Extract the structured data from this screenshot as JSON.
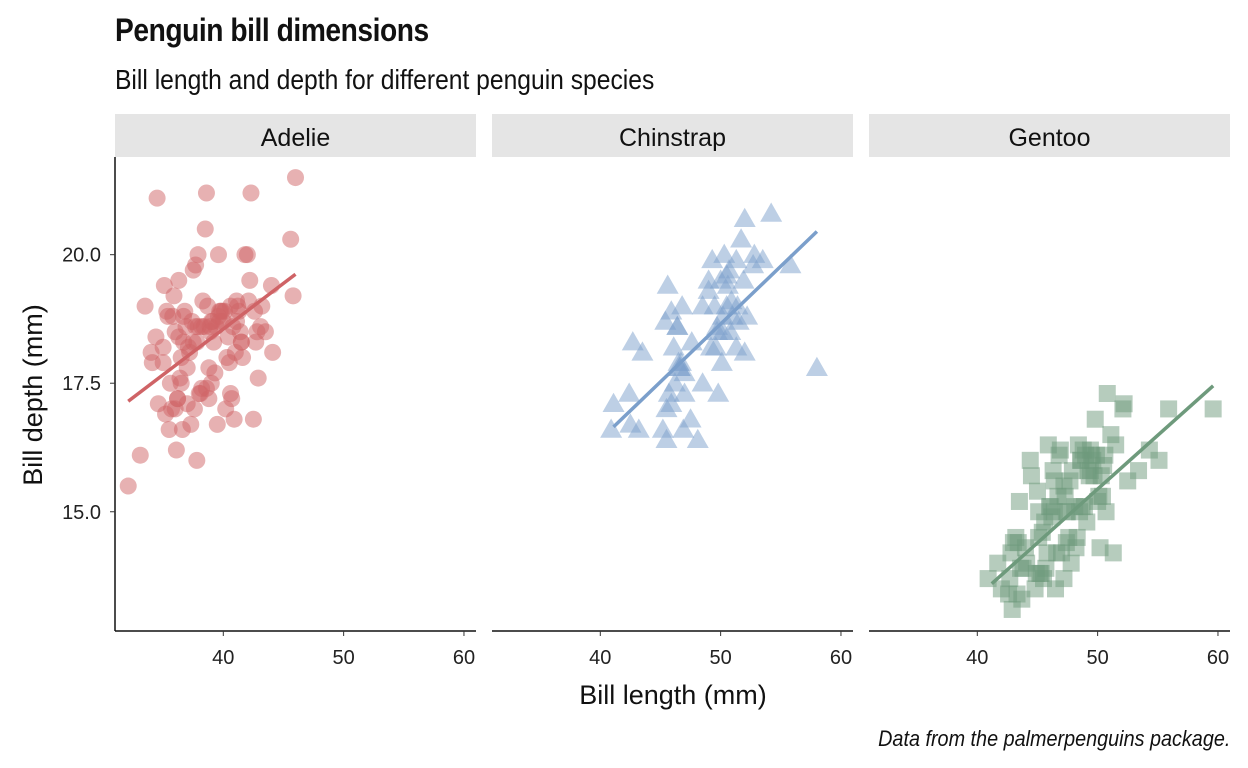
{
  "chart_data": {
    "type": "scatter",
    "title": "Penguin bill dimensions",
    "subtitle": "Bill length and depth for different penguin species",
    "caption": "Data from the palmerpenguins package.",
    "xlabel": "Bill length (mm)",
    "ylabel": "Bill depth (mm)",
    "xlim": [
      31,
      61
    ],
    "ylim": [
      12.7,
      21.9
    ],
    "xticks": [
      40,
      50,
      60
    ],
    "yticks": [
      15.0,
      17.5,
      20.0
    ],
    "ytick_labels": [
      "15.0",
      "17.5",
      "20.0"
    ],
    "xtick_labels": [
      "40",
      "50",
      "60"
    ],
    "grid": false,
    "legend": "none",
    "facets": [
      {
        "name": "Adelie",
        "color": "#cf6366",
        "shape": "circle",
        "trend": {
          "x": [
            32.1,
            46.0
          ],
          "y": [
            17.15,
            19.62
          ]
        },
        "x": [
          32.1,
          33.1,
          33.5,
          34.0,
          34.4,
          34.5,
          34.6,
          35.0,
          35.1,
          35.2,
          35.3,
          35.5,
          35.7,
          35.9,
          36.0,
          36.2,
          36.3,
          36.4,
          36.5,
          36.6,
          36.7,
          36.8,
          37.0,
          37.2,
          37.3,
          37.5,
          37.6,
          37.7,
          37.8,
          37.9,
          38.1,
          38.2,
          38.5,
          38.6,
          38.8,
          38.9,
          39.0,
          39.2,
          39.5,
          39.6,
          39.7,
          40.2,
          40.3,
          40.6,
          40.8,
          40.9,
          41.1,
          41.4,
          41.5,
          41.6,
          42.0,
          42.2,
          42.3,
          42.5,
          42.7,
          42.8,
          42.9,
          43.2,
          43.5,
          44.1,
          45.6,
          45.8,
          46.0,
          39.1,
          38.7,
          37.1,
          36.9,
          35.6,
          36.1,
          38.3,
          39.8,
          40.1,
          41.0,
          41.8,
          40.5,
          39.3,
          37.4,
          36.3,
          38.0,
          39.4,
          40.7,
          41.3,
          42.1,
          37.9,
          38.4,
          34.1,
          35.8,
          36.7,
          37.8,
          39.0,
          40.0,
          41.2,
          38.9,
          37.5,
          36.2,
          35.4,
          36.5,
          40.4,
          39.6,
          38.6,
          41.1,
          42.6,
          43.1,
          44.0,
          38.2,
          37.0,
          39.9,
          40.6,
          41.5,
          36.0,
          35.0,
          37.7,
          38.8,
          39.7
        ],
        "y": [
          15.5,
          16.1,
          19.0,
          18.1,
          18.4,
          21.1,
          17.1,
          17.9,
          19.4,
          16.9,
          18.9,
          16.6,
          17.0,
          19.2,
          18.5,
          17.2,
          19.5,
          17.6,
          18.0,
          16.6,
          18.8,
          18.9,
          17.8,
          18.1,
          16.7,
          18.3,
          17.0,
          19.8,
          16.0,
          20.0,
          17.3,
          18.6,
          20.5,
          21.2,
          17.8,
          18.6,
          17.5,
          18.3,
          16.7,
          18.8,
          18.9,
          17.0,
          18.0,
          19.0,
          18.6,
          16.8,
          19.1,
          18.5,
          18.3,
          18.0,
          20.0,
          19.5,
          21.2,
          16.8,
          18.3,
          18.5,
          17.6,
          19.0,
          18.5,
          18.1,
          20.3,
          19.2,
          21.5,
          18.7,
          19.0,
          18.2,
          18.6,
          17.5,
          16.2,
          19.1,
          18.9,
          18.9,
          18.1,
          20.0,
          17.9,
          17.7,
          18.7,
          18.4,
          17.3,
          18.6,
          17.2,
          18.9,
          19.1,
          18.6,
          18.6,
          17.9,
          18.8,
          18.3,
          18.3,
          18.7,
          18.7,
          19.0,
          18.5,
          19.7,
          17.2,
          18.8,
          17.5,
          18.4,
          20.0,
          17.4,
          18.7,
          18.9,
          18.6,
          19.4,
          17.4,
          17.1,
          18.9,
          17.3,
          18.3,
          17.0,
          18.2,
          18.6,
          17.2,
          18.7
        ]
      },
      {
        "name": "Chinstrap",
        "color": "#7b9fcb",
        "shape": "triangle",
        "trend": {
          "x": [
            41.1,
            58.0
          ],
          "y": [
            16.65,
            20.45
          ]
        },
        "x": [
          40.9,
          41.1,
          42.4,
          42.5,
          42.7,
          43.2,
          43.5,
          45.2,
          45.4,
          45.5,
          45.6,
          45.7,
          45.9,
          46.1,
          46.2,
          46.4,
          46.5,
          46.6,
          46.7,
          46.8,
          46.9,
          47.0,
          47.5,
          47.6,
          48.1,
          48.5,
          49.0,
          49.2,
          49.3,
          49.5,
          49.6,
          49.7,
          49.8,
          50.0,
          50.1,
          50.2,
          50.3,
          50.5,
          50.6,
          50.7,
          50.8,
          50.9,
          51.0,
          51.3,
          51.4,
          51.5,
          51.7,
          51.9,
          52.0,
          52.2,
          52.7,
          52.8,
          53.5,
          54.2,
          55.8,
          58.0,
          45.9,
          46.4,
          48.5,
          49.0,
          50.2,
          51.3,
          52.0,
          47.0,
          45.5,
          46.6,
          50.5,
          49.7
        ],
        "y": [
          16.6,
          17.1,
          17.3,
          16.7,
          18.3,
          16.6,
          18.1,
          16.6,
          18.7,
          17.0,
          19.4,
          17.3,
          17.1,
          18.2,
          17.5,
          18.6,
          17.9,
          17.8,
          17.9,
          19.0,
          16.6,
          17.3,
          16.8,
          18.3,
          16.4,
          17.5,
          19.5,
          18.2,
          19.9,
          19.0,
          18.2,
          18.6,
          17.3,
          19.5,
          17.9,
          18.8,
          20.0,
          19.6,
          19.4,
          19.7,
          18.5,
          19.1,
          18.8,
          19.9,
          19.0,
          18.7,
          20.3,
          19.5,
          18.1,
          18.8,
          19.8,
          20.0,
          19.9,
          20.8,
          19.8,
          17.8,
          18.9,
          18.6,
          19.0,
          19.3,
          18.5,
          18.2,
          20.7,
          17.7,
          16.4,
          17.8,
          19.0,
          18.5
        ]
      },
      {
        "name": "Gentoo",
        "color": "#6e9a7c",
        "shape": "square",
        "trend": {
          "x": [
            41.2,
            59.6
          ],
          "y": [
            13.6,
            17.45
          ]
        },
        "x": [
          40.9,
          41.7,
          42.0,
          42.6,
          42.7,
          42.8,
          42.9,
          43.2,
          43.3,
          43.4,
          43.5,
          43.6,
          43.8,
          44.0,
          44.4,
          44.5,
          44.9,
          45.0,
          45.1,
          45.2,
          45.3,
          45.4,
          45.5,
          45.7,
          45.8,
          46.1,
          46.2,
          46.3,
          46.4,
          46.5,
          46.6,
          46.8,
          46.9,
          47.2,
          47.3,
          47.4,
          47.5,
          47.6,
          47.7,
          47.8,
          48.1,
          48.2,
          48.4,
          48.5,
          48.6,
          48.7,
          48.8,
          49.0,
          49.1,
          49.2,
          49.3,
          49.4,
          49.5,
          49.6,
          49.8,
          49.9,
          50.0,
          50.1,
          50.2,
          50.4,
          50.5,
          50.7,
          50.8,
          51.1,
          51.3,
          51.5,
          52.1,
          52.2,
          52.5,
          53.4,
          54.3,
          55.1,
          55.9,
          59.6,
          43.0,
          44.1,
          45.6,
          46.7,
          47.0,
          48.3,
          49.7,
          50.3,
          45.1,
          46.0,
          47.4,
          48.6,
          44.8,
          46.4,
          47.9,
          49.4,
          50.6,
          43.7,
          45.9,
          47.2,
          48.9
        ],
        "y": [
          13.7,
          14.0,
          13.5,
          13.4,
          13.7,
          14.2,
          13.1,
          14.5,
          13.4,
          14.4,
          15.2,
          13.9,
          13.9,
          14.3,
          16.0,
          15.7,
          13.8,
          15.4,
          14.5,
          13.8,
          13.8,
          14.6,
          13.7,
          13.9,
          14.2,
          15.1,
          14.9,
          15.8,
          15.6,
          13.5,
          14.2,
          16.1,
          16.2,
          15.5,
          15.3,
          14.4,
          15.0,
          14.5,
          15.6,
          14.0,
          15.1,
          14.3,
          16.3,
          15.0,
          16.0,
          15.1,
          16.2,
          16.1,
          14.8,
          15.8,
          15.7,
          15.8,
          16.1,
          16.0,
          16.8,
          16.1,
          15.2,
          15.3,
          14.3,
          15.3,
          15.9,
          15.0,
          17.3,
          16.5,
          14.2,
          16.3,
          17.0,
          17.1,
          15.6,
          15.8,
          16.2,
          16.0,
          17.0,
          17.0,
          14.4,
          14.0,
          14.8,
          15.3,
          14.2,
          14.5,
          15.7,
          15.7,
          15.0,
          15.1,
          15.0,
          16.0,
          13.5,
          15.0,
          15.8,
          16.2,
          16.1,
          13.3,
          16.3,
          13.7,
          15.1
        ]
      }
    ]
  }
}
